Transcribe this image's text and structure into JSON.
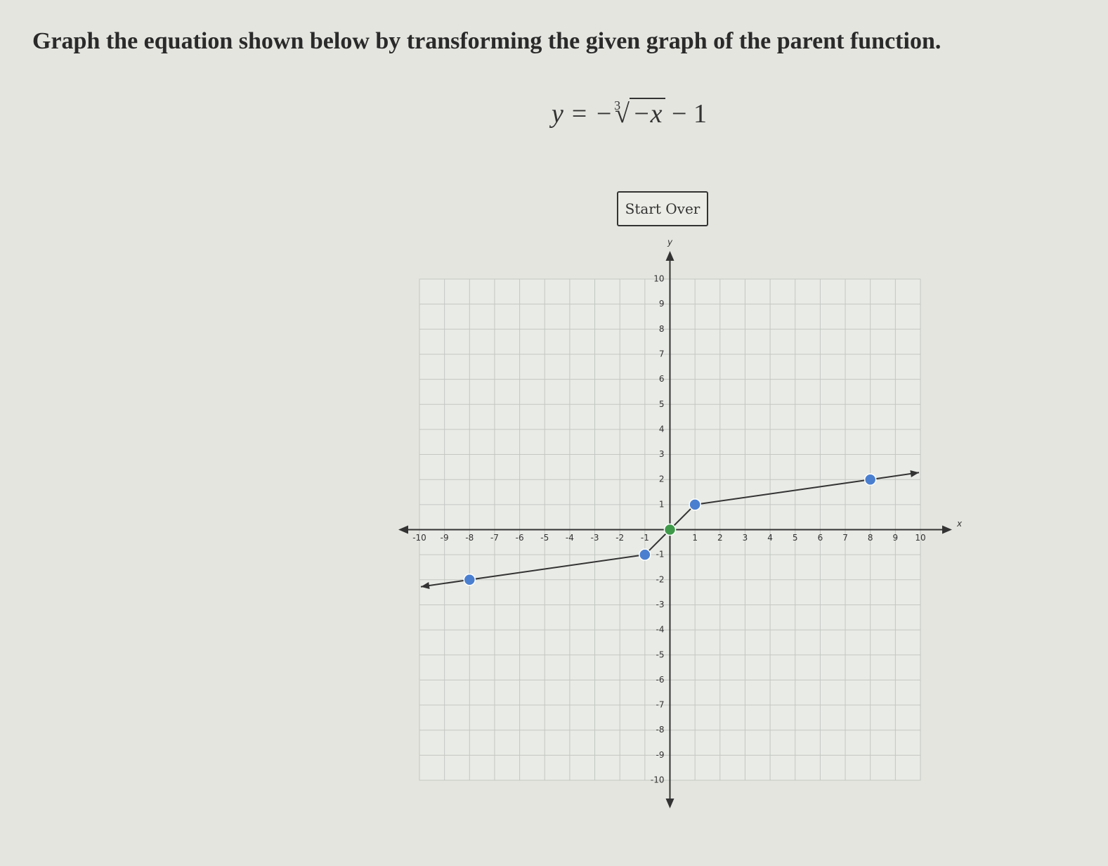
{
  "header": {
    "title": "Graph the equation shown below by transforming the given graph of the parent function."
  },
  "equation": {
    "lhs": "y = −",
    "index": "3",
    "radicand": "−x",
    "rhs": "− 1"
  },
  "button": {
    "label": "Start Over"
  },
  "chart_data": {
    "type": "line",
    "x_label": "x",
    "y_label": "y",
    "x": [
      -8,
      -1,
      0,
      1,
      8
    ],
    "series": [
      {
        "color": "#4a7fd0",
        "values": [
          -2,
          -1,
          0,
          1,
          2
        ]
      }
    ],
    "xlim": [
      -10,
      10
    ],
    "ylim": [
      -10,
      10
    ],
    "xticks": [
      -10,
      -9,
      -8,
      -7,
      -6,
      -5,
      -4,
      -3,
      -2,
      -1,
      1,
      2,
      3,
      4,
      5,
      6,
      7,
      8,
      9,
      10
    ],
    "yticks": [
      -10,
      -9,
      -8,
      -7,
      -6,
      -5,
      -4,
      -3,
      -2,
      -1,
      1,
      2,
      3,
      4,
      5,
      6,
      7,
      8,
      9,
      10
    ],
    "grid": true
  }
}
